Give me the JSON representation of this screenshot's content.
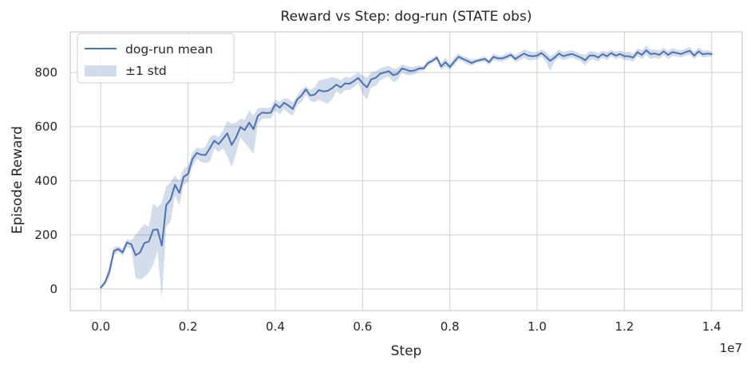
{
  "chart_data": {
    "type": "line",
    "title": "Reward vs Step: dog-run (STATE obs)",
    "xlabel": "Step",
    "ylabel": "Episode Reward",
    "x_offset_label": "1e7",
    "xlim": [
      -700000,
      14700000
    ],
    "ylim": [
      -80,
      950
    ],
    "x_ticks": [
      0,
      2000000,
      4000000,
      6000000,
      8000000,
      10000000,
      12000000,
      14000000
    ],
    "x_tick_labels": [
      "0.0",
      "0.2",
      "0.4",
      "0.6",
      "0.8",
      "1.0",
      "1.2",
      "1.4"
    ],
    "y_ticks": [
      0,
      200,
      400,
      600,
      800
    ],
    "y_tick_labels": [
      "0",
      "200",
      "400",
      "600",
      "800"
    ],
    "grid": true,
    "legend_position": "top-left",
    "series": [
      {
        "name": "dog-run mean",
        "kind": "line",
        "color": "#4c72b0",
        "x": [
          0,
          100000,
          200000,
          300000,
          400000,
          500000,
          600000,
          700000,
          800000,
          900000,
          1000000,
          1100000,
          1200000,
          1300000,
          1400000,
          1500000,
          1600000,
          1700000,
          1800000,
          1900000,
          2000000,
          2100000,
          2200000,
          2300000,
          2400000,
          2500000,
          2600000,
          2700000,
          2800000,
          2900000,
          3000000,
          3100000,
          3200000,
          3300000,
          3400000,
          3500000,
          3600000,
          3700000,
          3800000,
          3900000,
          4000000,
          4100000,
          4200000,
          4300000,
          4400000,
          4500000,
          4600000,
          4700000,
          4800000,
          4900000,
          5000000,
          5100000,
          5200000,
          5300000,
          5400000,
          5500000,
          5600000,
          5700000,
          5800000,
          5900000,
          6000000,
          6100000,
          6200000,
          6300000,
          6400000,
          6500000,
          6600000,
          6700000,
          6800000,
          6900000,
          7000000,
          7100000,
          7200000,
          7300000,
          7400000,
          7500000,
          7600000,
          7700000,
          7800000,
          7900000,
          8000000,
          8100000,
          8200000,
          8300000,
          8400000,
          8500000,
          8600000,
          8700000,
          8800000,
          8900000,
          9000000,
          9100000,
          9200000,
          9300000,
          9400000,
          9500000,
          9600000,
          9700000,
          9800000,
          9900000,
          10000000,
          10100000,
          10200000,
          10300000,
          10400000,
          10500000,
          10600000,
          10700000,
          10800000,
          10900000,
          11000000,
          11100000,
          11200000,
          11300000,
          11400000,
          11500000,
          11600000,
          11700000,
          11800000,
          11900000,
          12000000,
          12100000,
          12200000,
          12300000,
          12400000,
          12500000,
          12600000,
          12700000,
          12800000,
          12900000,
          13000000,
          13100000,
          13200000,
          13300000,
          13400000,
          13500000,
          13600000,
          13700000,
          13800000,
          13900000,
          14000000
        ],
        "values": [
          5,
          25,
          65,
          140,
          148,
          135,
          172,
          165,
          125,
          135,
          170,
          175,
          218,
          220,
          160,
          310,
          330,
          385,
          355,
          415,
          425,
          480,
          503,
          496,
          495,
          520,
          548,
          535,
          555,
          575,
          532,
          560,
          598,
          587,
          615,
          590,
          640,
          652,
          650,
          652,
          683,
          670,
          688,
          678,
          665,
          700,
          715,
          738,
          715,
          718,
          735,
          730,
          732,
          742,
          755,
          745,
          760,
          758,
          768,
          780,
          760,
          745,
          775,
          780,
          795,
          800,
          805,
          790,
          795,
          815,
          810,
          805,
          808,
          815,
          815,
          835,
          843,
          855,
          822,
          838,
          820,
          840,
          858,
          850,
          843,
          835,
          842,
          846,
          850,
          838,
          858,
          852,
          852,
          858,
          865,
          850,
          860,
          870,
          862,
          860,
          862,
          872,
          858,
          843,
          855,
          870,
          860,
          865,
          868,
          862,
          855,
          845,
          862,
          863,
          855,
          868,
          860,
          872,
          862,
          868,
          860,
          860,
          855,
          875,
          865,
          882,
          868,
          870,
          865,
          878,
          865,
          875,
          872,
          868,
          875,
          880,
          862,
          878,
          867,
          870,
          868
        ],
        "line_width": 2
      },
      {
        "name": "±1 std",
        "kind": "band",
        "color": "#4c72b0",
        "opacity": 0.25,
        "x": [
          0,
          100000,
          200000,
          300000,
          400000,
          500000,
          600000,
          700000,
          800000,
          900000,
          1000000,
          1100000,
          1200000,
          1300000,
          1400000,
          1500000,
          1600000,
          1700000,
          1800000,
          1900000,
          2000000,
          2100000,
          2200000,
          2300000,
          2400000,
          2500000,
          2600000,
          2700000,
          2800000,
          2900000,
          3000000,
          3100000,
          3200000,
          3300000,
          3400000,
          3500000,
          3600000,
          3700000,
          3800000,
          3900000,
          4000000,
          4100000,
          4200000,
          4300000,
          4400000,
          4500000,
          4600000,
          4700000,
          4800000,
          4900000,
          5000000,
          5100000,
          5200000,
          5300000,
          5400000,
          5500000,
          5600000,
          5700000,
          5800000,
          5900000,
          6000000,
          6100000,
          6200000,
          6300000,
          6400000,
          6500000,
          6600000,
          6700000,
          6800000,
          6900000,
          7000000,
          7100000,
          7200000,
          7300000,
          7400000,
          7500000,
          7600000,
          7700000,
          7800000,
          7900000,
          8000000,
          8100000,
          8200000,
          8300000,
          8400000,
          8500000,
          8600000,
          8700000,
          8800000,
          8900000,
          9000000,
          9100000,
          9200000,
          9300000,
          9400000,
          9500000,
          9600000,
          9700000,
          9800000,
          9900000,
          10000000,
          10100000,
          10200000,
          10300000,
          10400000,
          10500000,
          10600000,
          10700000,
          10800000,
          10900000,
          11000000,
          11100000,
          11200000,
          11300000,
          11400000,
          11500000,
          11600000,
          11700000,
          11800000,
          11900000,
          12000000,
          12100000,
          12200000,
          12300000,
          12400000,
          12500000,
          12600000,
          12700000,
          12800000,
          12900000,
          13000000,
          13100000,
          13200000,
          13300000,
          13400000,
          13500000,
          13600000,
          13700000,
          13800000,
          13900000,
          14000000
        ],
        "lower": [
          0,
          15,
          45,
          125,
          138,
          122,
          155,
          148,
          40,
          35,
          45,
          60,
          90,
          140,
          -35,
          230,
          250,
          345,
          310,
          385,
          395,
          455,
          480,
          470,
          465,
          470,
          520,
          505,
          520,
          490,
          450,
          500,
          560,
          540,
          520,
          500,
          610,
          630,
          630,
          630,
          660,
          645,
          665,
          650,
          640,
          680,
          690,
          720,
          695,
          690,
          700,
          690,
          685,
          700,
          730,
          720,
          735,
          735,
          745,
          760,
          720,
          700,
          745,
          750,
          770,
          780,
          785,
          765,
          770,
          800,
          790,
          790,
          795,
          805,
          805,
          825,
          835,
          845,
          810,
          820,
          810,
          825,
          845,
          840,
          830,
          825,
          835,
          838,
          840,
          828,
          845,
          842,
          842,
          846,
          855,
          838,
          845,
          855,
          845,
          845,
          848,
          860,
          840,
          805,
          840,
          855,
          845,
          850,
          855,
          847,
          842,
          825,
          845,
          848,
          840,
          855,
          845,
          860,
          850,
          855,
          846,
          845,
          840,
          860,
          850,
          865,
          850,
          855,
          850,
          865,
          850,
          860,
          860,
          855,
          862,
          865,
          850,
          865,
          855,
          858,
          858
        ],
        "upper": [
          10,
          35,
          90,
          155,
          158,
          148,
          185,
          180,
          200,
          220,
          240,
          230,
          315,
          300,
          320,
          380,
          395,
          420,
          400,
          445,
          455,
          505,
          522,
          518,
          525,
          560,
          570,
          562,
          585,
          620,
          610,
          615,
          630,
          625,
          660,
          640,
          668,
          670,
          668,
          672,
          700,
          692,
          705,
          702,
          690,
          715,
          735,
          750,
          735,
          745,
          770,
          775,
          778,
          782,
          780,
          770,
          785,
          780,
          790,
          800,
          790,
          780,
          800,
          805,
          815,
          820,
          825,
          815,
          815,
          830,
          825,
          820,
          822,
          825,
          825,
          845,
          852,
          865,
          835,
          855,
          830,
          855,
          870,
          860,
          856,
          848,
          850,
          855,
          860,
          848,
          870,
          862,
          862,
          870,
          875,
          862,
          875,
          885,
          880,
          875,
          876,
          885,
          876,
          860,
          870,
          885,
          875,
          880,
          882,
          876,
          868,
          865,
          878,
          878,
          870,
          880,
          875,
          885,
          875,
          882,
          875,
          876,
          870,
          890,
          882,
          898,
          885,
          885,
          880,
          892,
          880,
          890,
          885,
          882,
          888,
          895,
          875,
          892,
          880,
          883,
          878
        ]
      }
    ]
  }
}
